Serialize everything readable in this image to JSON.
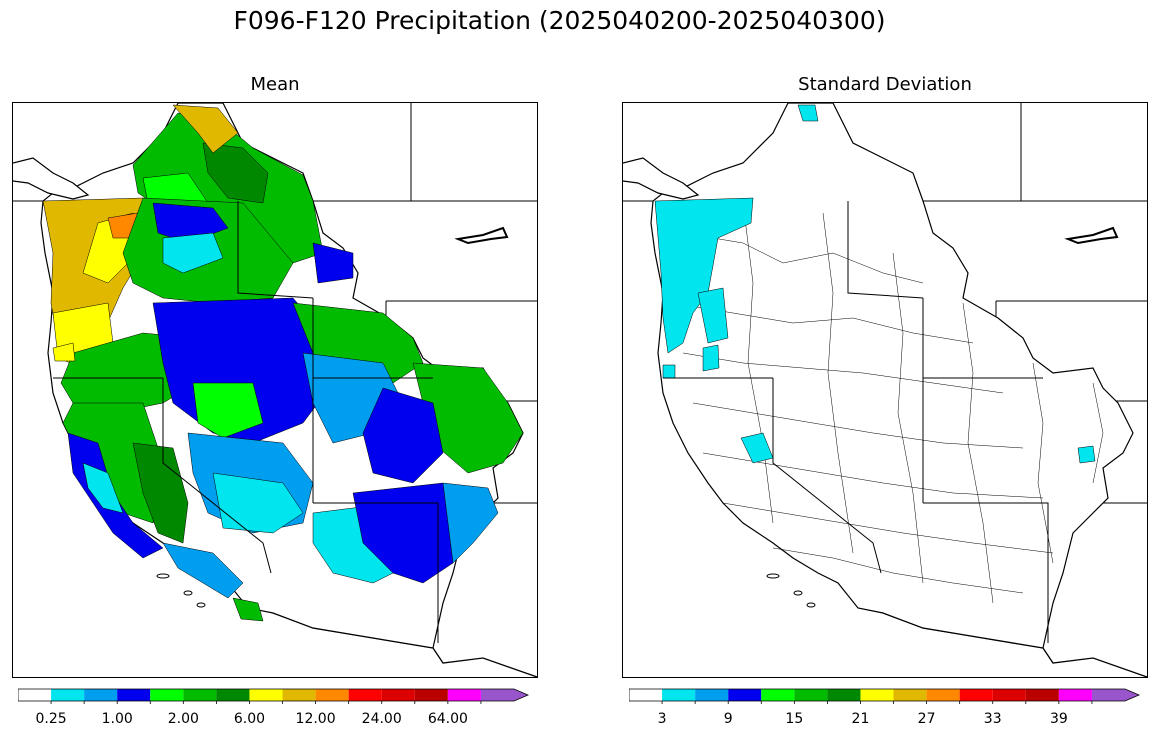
{
  "figure": {
    "title": "F096-F120 Precipitation (2025040200-2025040300)"
  },
  "panels": [
    {
      "title": "Mean",
      "colorbar": {
        "colors": [
          "#ffffff",
          "#00e5ee",
          "#009eef",
          "#0000ee",
          "#00ff00",
          "#00bb00",
          "#008800",
          "#ffff00",
          "#e0b800",
          "#ff8800",
          "#ff0000",
          "#dd0000",
          "#bb0000",
          "#ff00ff",
          "#9955cc"
        ],
        "tick_labels": [
          "0.25",
          "1.00",
          "2.00",
          "6.00",
          "12.00",
          "24.00",
          "64.00"
        ],
        "extend": "max"
      },
      "regions": [
        {
          "color": "#ffd700",
          "area": "northern Alberta/BC tip"
        },
        {
          "color": "#00bb00",
          "area": "interior British Columbia"
        },
        {
          "color": "#e0b800",
          "area": "Olympic Peninsula / Oregon coast"
        },
        {
          "color": "#ffff00",
          "area": "Washington/Oregon Cascades"
        },
        {
          "color": "#0000ee",
          "area": "Idaho / Nevada / Utah interior"
        },
        {
          "color": "#009eef",
          "area": "Great Basin / Colorado Plateau"
        },
        {
          "color": "#00e5ee",
          "area": "southern Nevada / Arizona"
        },
        {
          "color": "#00ff00",
          "area": "Wyoming / Colorado"
        },
        {
          "color": "#ffffff",
          "area": "southern Arizona / New Mexico"
        }
      ]
    },
    {
      "title": "Standard Deviation",
      "colorbar": {
        "colors": [
          "#ffffff",
          "#00e5ee",
          "#009eef",
          "#0000ee",
          "#00ff00",
          "#00bb00",
          "#008800",
          "#ffff00",
          "#e0b800",
          "#ff8800",
          "#ff0000",
          "#dd0000",
          "#bb0000",
          "#ff00ff",
          "#9955cc"
        ],
        "tick_labels": [
          "3",
          "9",
          "15",
          "21",
          "27",
          "33",
          "39"
        ],
        "extend": "max"
      },
      "regions": [
        {
          "color": "#00e5ee",
          "area": "Washington/Oregon coast"
        },
        {
          "color": "#00e5ee",
          "area": "northern California Sierra"
        },
        {
          "color": "#00e5ee",
          "area": "northern BC tip"
        },
        {
          "color": "#00e5ee",
          "area": "Colorado spot"
        }
      ]
    }
  ]
}
